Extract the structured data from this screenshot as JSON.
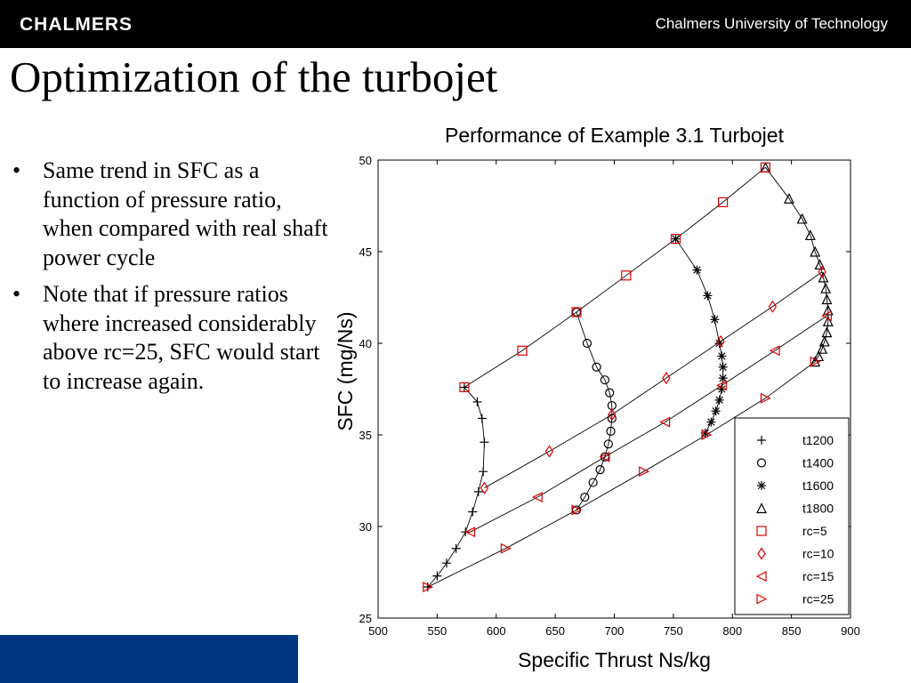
{
  "header": {
    "logo": "CHALMERS",
    "university": "Chalmers University of Technology"
  },
  "slide": {
    "title": "Optimization of the turbojet",
    "bullets": [
      "Same trend in SFC as a function of pressure ratio, when compared with real shaft power cycle",
      "Note that if pressure ratios where increased considerably above rc=25, SFC would start to increase again."
    ],
    "bullet_glyph": "•"
  },
  "colors": {
    "header_bg": "#000000",
    "footer_block": "#003580",
    "marker_red": "#dd0000",
    "line": "#000000"
  },
  "chart_data": {
    "type": "line",
    "title": "Performance of Example 3.1 Turbojet",
    "xlabel": "Specific Thrust Ns/kg",
    "ylabel": "SFC  (mg/Ns)",
    "xlim": [
      500,
      900
    ],
    "ylim": [
      25,
      50
    ],
    "xticks": [
      500,
      550,
      600,
      650,
      700,
      750,
      800,
      850,
      900
    ],
    "yticks": [
      25,
      30,
      35,
      40,
      45,
      50
    ],
    "grid": false,
    "legend_position": "bottom-right",
    "series": [
      {
        "name": "t1200",
        "marker": "plus",
        "color": "#000000",
        "group": "t",
        "x": [
          542,
          550,
          558,
          566,
          574,
          580,
          585,
          589,
          590,
          588,
          584,
          573
        ],
        "y": [
          26.7,
          27.3,
          28.0,
          28.8,
          29.7,
          30.8,
          31.9,
          33.0,
          34.6,
          35.9,
          36.8,
          37.6
        ]
      },
      {
        "name": "t1400",
        "marker": "circle",
        "color": "#000000",
        "group": "t",
        "x": [
          668,
          675,
          682,
          688,
          692,
          695,
          697,
          698,
          698,
          696,
          692,
          685,
          677,
          668
        ],
        "y": [
          30.9,
          31.6,
          32.4,
          33.1,
          33.8,
          34.5,
          35.2,
          35.9,
          36.6,
          37.3,
          38.0,
          38.7,
          40.0,
          41.7
        ]
      },
      {
        "name": "t1600",
        "marker": "asterisk",
        "color": "#000000",
        "group": "t",
        "x": [
          777,
          782,
          786,
          789,
          791,
          792,
          792,
          791,
          789,
          785,
          779,
          770,
          752
        ],
        "y": [
          35.1,
          35.7,
          36.3,
          36.9,
          37.5,
          38.1,
          38.7,
          39.3,
          40.0,
          41.3,
          42.6,
          44.0,
          45.7
        ]
      },
      {
        "name": "t1800",
        "marker": "triangle-up",
        "color": "#000000",
        "group": "t",
        "x": [
          870,
          873,
          876,
          878,
          880,
          881,
          881,
          880,
          879,
          877,
          874,
          870,
          866,
          859,
          848,
          828
        ],
        "y": [
          39.0,
          39.3,
          39.7,
          40.1,
          40.6,
          41.2,
          41.8,
          42.4,
          43.0,
          43.6,
          44.3,
          45.0,
          45.9,
          46.8,
          47.9,
          49.6
        ]
      },
      {
        "name": "rc=5",
        "marker": "square",
        "color": "#dd0000",
        "group": "rc",
        "x": [
          573,
          622,
          668,
          710,
          752,
          792,
          828
        ],
        "y": [
          37.6,
          39.6,
          41.7,
          43.7,
          45.7,
          47.7,
          49.6
        ]
      },
      {
        "name": "rc=10",
        "marker": "diamond",
        "color": "#dd0000",
        "group": "rc",
        "x": [
          590,
          645,
          698,
          744,
          790,
          834,
          876
        ],
        "y": [
          32.1,
          34.1,
          36.1,
          38.1,
          40.1,
          42.0,
          43.9
        ]
      },
      {
        "name": "rc=15",
        "marker": "triangle-left",
        "color": "#dd0000",
        "group": "rc",
        "x": [
          578,
          635,
          692,
          743,
          791,
          836,
          880
        ],
        "y": [
          29.7,
          31.6,
          33.8,
          35.7,
          37.7,
          39.6,
          41.5
        ]
      },
      {
        "name": "rc=25",
        "marker": "triangle-right",
        "color": "#dd0000",
        "group": "rc",
        "x": [
          542,
          608,
          668,
          725,
          778,
          828,
          870
        ],
        "y": [
          26.7,
          28.8,
          30.9,
          33.0,
          35.0,
          37.0,
          39.0
        ]
      }
    ]
  }
}
